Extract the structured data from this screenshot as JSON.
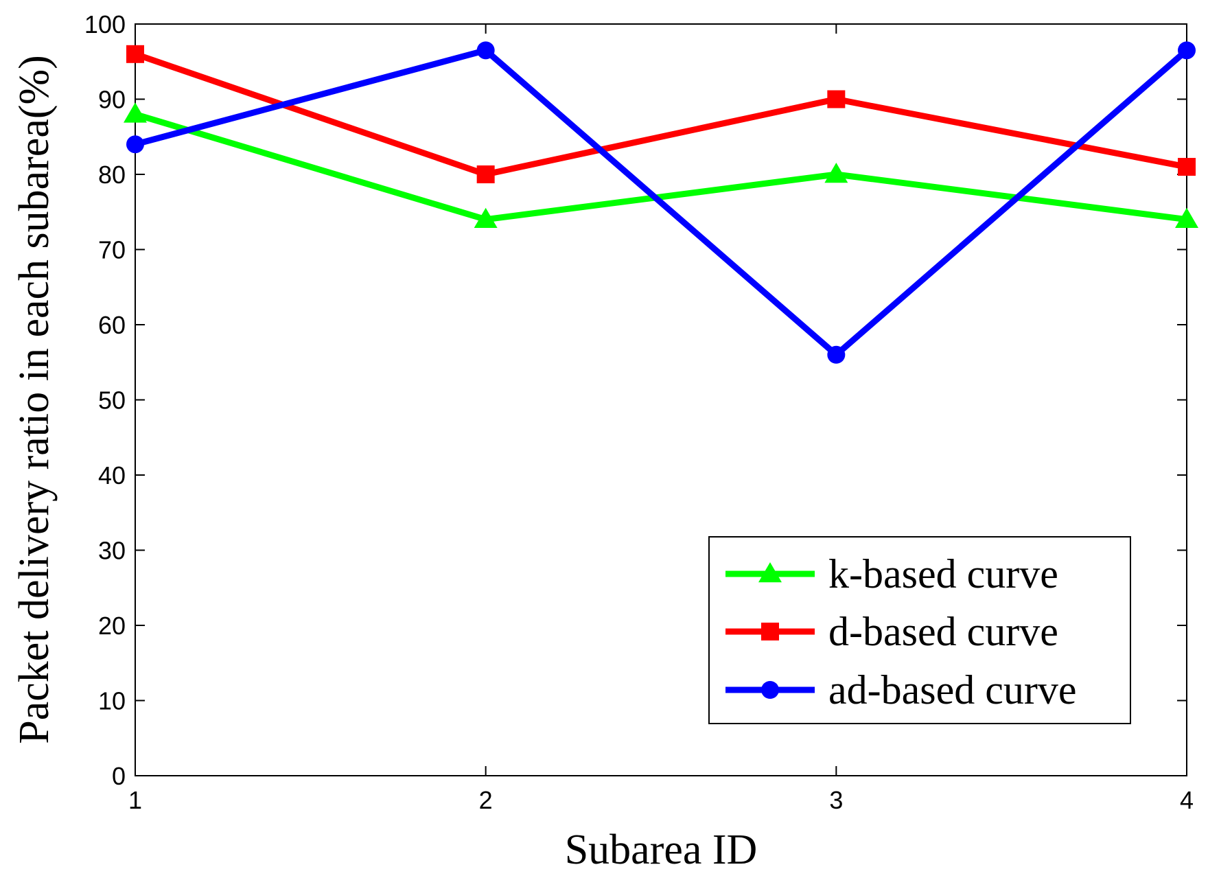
{
  "chart_data": {
    "type": "line",
    "title": "",
    "xlabel": "Subarea ID",
    "ylabel": "Packet delivery ratio in each subarea(%)",
    "x": [
      1,
      2,
      3,
      4
    ],
    "xticks": [
      "1",
      "2",
      "3",
      "4"
    ],
    "xlim": [
      1,
      4
    ],
    "ylim": [
      0,
      100
    ],
    "yticks": [
      "0",
      "10",
      "20",
      "30",
      "40",
      "50",
      "60",
      "70",
      "80",
      "90",
      "100"
    ],
    "grid": false,
    "legend_position": "bottom-right",
    "series": [
      {
        "name": "k-based curve",
        "color": "#00ff00",
        "marker": "triangle",
        "values": [
          88,
          74,
          80,
          74
        ]
      },
      {
        "name": "d-based curve",
        "color": "#ff0000",
        "marker": "square",
        "values": [
          96,
          80,
          90,
          81
        ]
      },
      {
        "name": "ad-based curve",
        "color": "#0000ff",
        "marker": "circle",
        "values": [
          84,
          96.5,
          56,
          96.5
        ]
      }
    ]
  }
}
